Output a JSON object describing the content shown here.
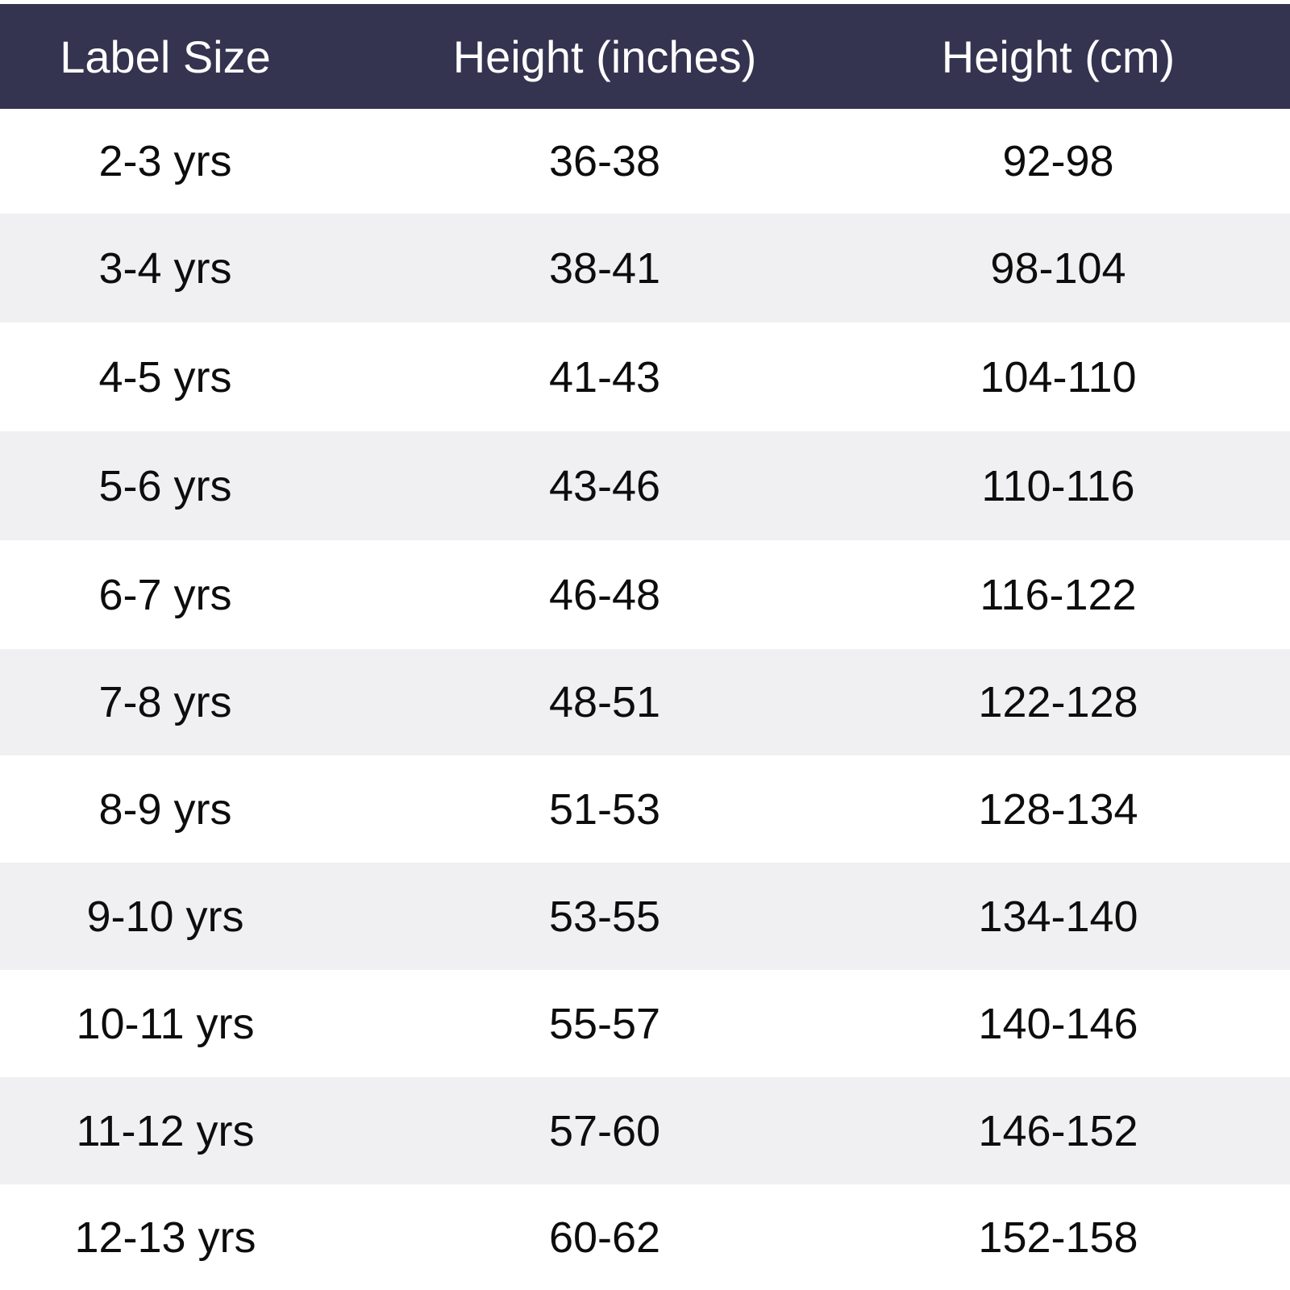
{
  "table": {
    "header": {
      "label_size": "Label Size",
      "height_inches": "Height (inches)",
      "height_cm": "Height (cm)"
    },
    "colors": {
      "header_background": "#343350",
      "header_text": "#ffffff",
      "shaded_row": "#f0f0f2",
      "plain_row": "#ffffff"
    },
    "rows": [
      {
        "label": "2-3 yrs",
        "inches": "36-38",
        "cm": "92-98"
      },
      {
        "label": "3-4 yrs",
        "inches": "38-41",
        "cm": "98-104"
      },
      {
        "label": "4-5 yrs",
        "inches": "41-43",
        "cm": "104-110"
      },
      {
        "label": "5-6 yrs",
        "inches": "43-46",
        "cm": "110-116"
      },
      {
        "label": "6-7 yrs",
        "inches": "46-48",
        "cm": "116-122"
      },
      {
        "label": "7-8 yrs",
        "inches": "48-51",
        "cm": "122-128"
      },
      {
        "label": "8-9 yrs",
        "inches": "51-53",
        "cm": "128-134"
      },
      {
        "label": "9-10 yrs",
        "inches": "53-55",
        "cm": "134-140"
      },
      {
        "label": "10-11 yrs",
        "inches": "55-57",
        "cm": "140-146"
      },
      {
        "label": "11-12 yrs",
        "inches": "57-60",
        "cm": "146-152"
      },
      {
        "label": "12-13 yrs",
        "inches": "60-62",
        "cm": "152-158"
      }
    ]
  }
}
